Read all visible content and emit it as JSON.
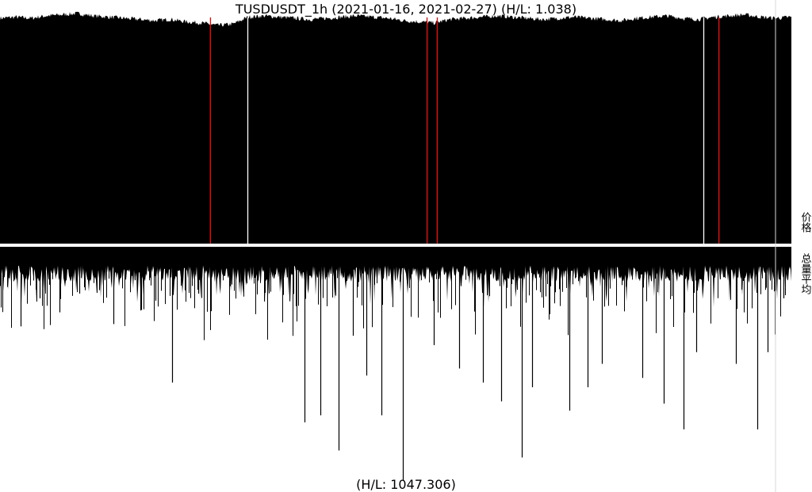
{
  "chart_data": [
    {
      "type": "area",
      "panel": "price",
      "title": "TUSDUSDT_1h (2021-01-16, 2021-02-27) (H/L: 1.038)",
      "symbol": "TUSDUSDT",
      "interval": "1h",
      "date_range": [
        "2021-01-16",
        "2021-02-27"
      ],
      "high_low_ratio": 1.038,
      "ylabel": "价格",
      "fill_color": "#000000",
      "background": "#ffffff",
      "highlight_color": "#ff0000",
      "price_profile": [
        0.95,
        0.955,
        0.95,
        0.96,
        0.965,
        0.97,
        0.96,
        0.955,
        0.95,
        0.945,
        0.94,
        0.945,
        0.935,
        0.93,
        0.92,
        0.925,
        0.955,
        0.96,
        0.955,
        0.95,
        0.945,
        0.95,
        0.955,
        0.96,
        0.955,
        0.95,
        0.94,
        0.935,
        0.93,
        0.945,
        0.95,
        0.955,
        0.96,
        0.955,
        0.95,
        0.945,
        0.95,
        0.955,
        0.95,
        0.945,
        0.94,
        0.95,
        0.955,
        0.96,
        0.95,
        0.945,
        0.955,
        0.96,
        0.965,
        0.955,
        0.95,
        0.955
      ],
      "gaps": [
        {
          "position": 0.266,
          "color": "#ff0000"
        },
        {
          "position": 0.313,
          "color": "#ffffff"
        },
        {
          "position": 0.539,
          "color": "#ff0000"
        },
        {
          "position": 0.552,
          "color": "#ff0000"
        },
        {
          "position": 0.889,
          "color": "#ffffff"
        },
        {
          "position": 0.908,
          "color": "#ff0000"
        }
      ]
    },
    {
      "type": "bar",
      "panel": "volume",
      "orientation": "downward",
      "ylabel": "总量平均",
      "high_low_ratio": 1047.306,
      "bottom_label": "(H/L: 1047.306)",
      "fill_color": "#000000",
      "base_level": 0.08,
      "spikes": [
        {
          "x": 0.026,
          "v": 0.34
        },
        {
          "x": 0.05,
          "v": 0.22
        },
        {
          "x": 0.075,
          "v": 0.28
        },
        {
          "x": 0.1,
          "v": 0.2
        },
        {
          "x": 0.143,
          "v": 0.33
        },
        {
          "x": 0.178,
          "v": 0.27
        },
        {
          "x": 0.196,
          "v": 0.23
        },
        {
          "x": 0.217,
          "v": 0.58
        },
        {
          "x": 0.25,
          "v": 0.2
        },
        {
          "x": 0.385,
          "v": 0.75
        },
        {
          "x": 0.405,
          "v": 0.72
        },
        {
          "x": 0.428,
          "v": 0.87
        },
        {
          "x": 0.446,
          "v": 0.38
        },
        {
          "x": 0.463,
          "v": 0.55
        },
        {
          "x": 0.482,
          "v": 0.72
        },
        {
          "x": 0.509,
          "v": 1.0
        },
        {
          "x": 0.548,
          "v": 0.42
        },
        {
          "x": 0.58,
          "v": 0.52
        },
        {
          "x": 0.61,
          "v": 0.58
        },
        {
          "x": 0.633,
          "v": 0.66
        },
        {
          "x": 0.659,
          "v": 0.9
        },
        {
          "x": 0.672,
          "v": 0.6
        },
        {
          "x": 0.719,
          "v": 0.7
        },
        {
          "x": 0.742,
          "v": 0.6
        },
        {
          "x": 0.761,
          "v": 0.5
        },
        {
          "x": 0.812,
          "v": 0.56
        },
        {
          "x": 0.839,
          "v": 0.67
        },
        {
          "x": 0.864,
          "v": 0.78
        },
        {
          "x": 0.88,
          "v": 0.45
        },
        {
          "x": 0.93,
          "v": 0.5
        },
        {
          "x": 0.957,
          "v": 0.78
        },
        {
          "x": 0.97,
          "v": 0.45
        },
        {
          "x": 0.99,
          "v": 0.22
        }
      ]
    }
  ]
}
